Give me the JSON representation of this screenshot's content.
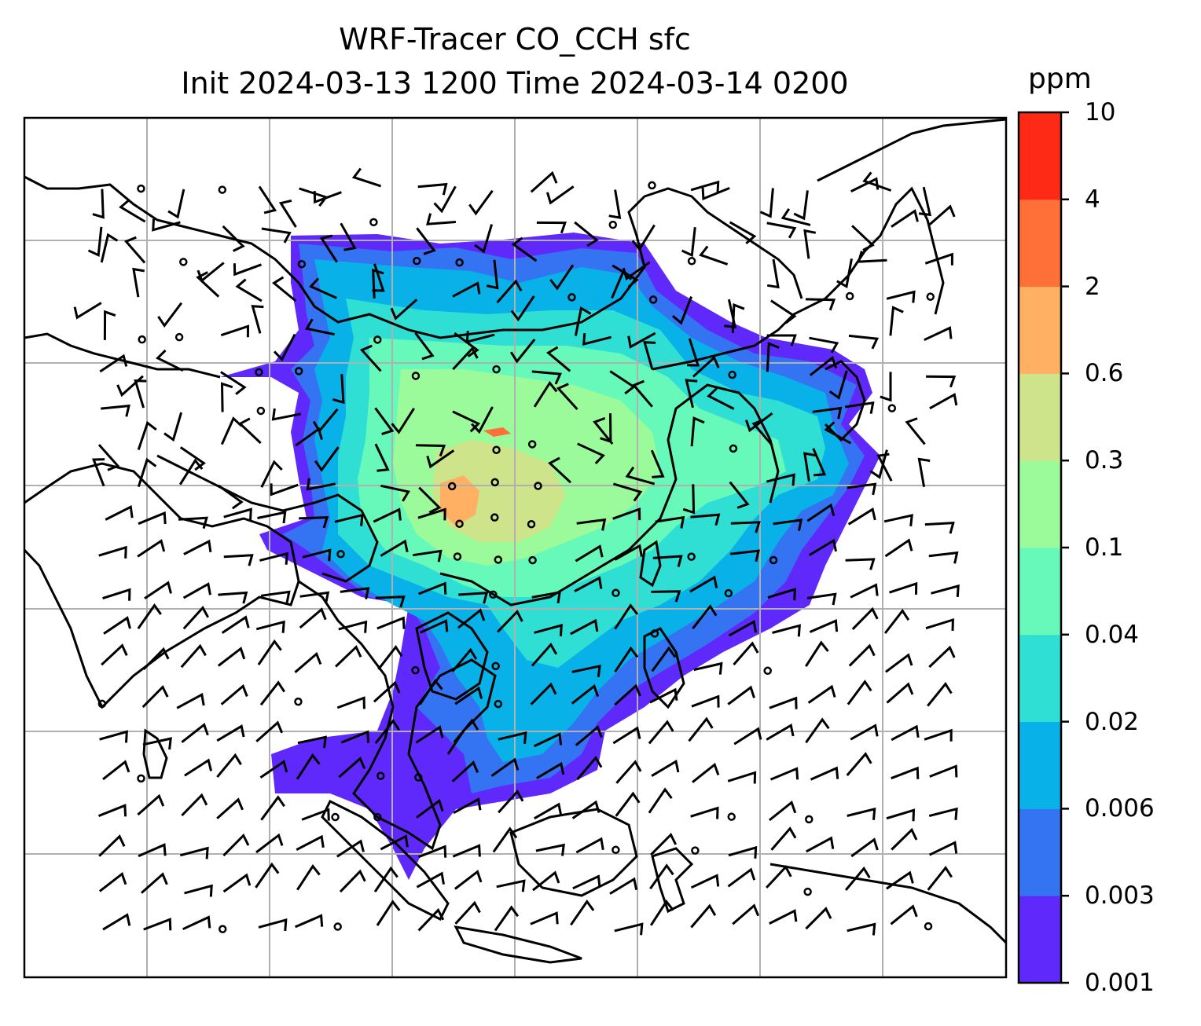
{
  "title": {
    "line1": "WRF-Tracer CO_CCH sfc",
    "line2": "Init 2024-03-13 1200 Time 2024-03-14 0200"
  },
  "colorbar": {
    "unit": "ppm",
    "levels": [
      "0.001",
      "0.003",
      "0.006",
      "0.02",
      "0.04",
      "0.1",
      "0.3",
      "0.6",
      "2",
      "4",
      "10"
    ],
    "colors": [
      "#6029fb",
      "#3474f2",
      "#08b1e8",
      "#2fdfd4",
      "#67f9b9",
      "#9bfb9a",
      "#cde48a",
      "#ffb062",
      "#ff7038",
      "#ff2a15"
    ]
  },
  "map": {
    "projection": "PlateCarree",
    "gridlines": true,
    "overlay": "wind barbs and calm circles",
    "frame_color": "#000000",
    "gridline_color": "#b0b0b0",
    "coastline_color": "#000000"
  }
}
